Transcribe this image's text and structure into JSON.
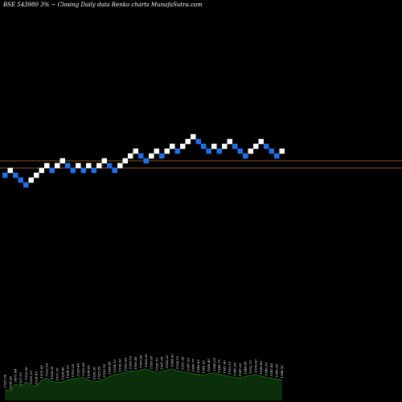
{
  "chart_data": {
    "type": "renko",
    "title": "BSE 543980  3% ~  Closing Daily data  Renko  charts MunafaSutra.com",
    "xlabel": "",
    "ylabel": "",
    "grid": false,
    "legend": "none",
    "colors": {
      "background": "#000000",
      "up_brick": "#ffffff",
      "down_brick": "#1e6fe8",
      "reference_line": "#b8702a",
      "volume_fill": "#0b2e0b",
      "volume_line": "#1f7a1f"
    },
    "brick_directions": [
      "down",
      "up",
      "down",
      "down",
      "down",
      "up",
      "up",
      "up",
      "up",
      "down",
      "up",
      "up",
      "down",
      "down",
      "up",
      "down",
      "up",
      "down",
      "up",
      "up",
      "down",
      "down",
      "up",
      "up",
      "up",
      "up",
      "down",
      "down",
      "up",
      "up",
      "down",
      "up",
      "up",
      "down",
      "up",
      "up",
      "up",
      "down",
      "down",
      "down",
      "up",
      "down",
      "up",
      "up",
      "down",
      "down",
      "down",
      "up",
      "up",
      "up",
      "down",
      "down",
      "down",
      "up"
    ],
    "reference_lines": [
      {
        "name": "upper",
        "brick_level": 3
      },
      {
        "name": "lower",
        "brick_level": 1.5
      }
    ],
    "volume": {
      "labels": [
        "1525.30",
        "1538.90",
        "1471.48",
        "1527.10",
        "1525.90",
        "1525.35",
        "1534.45",
        "1531.65",
        "1532.50",
        "1524.30",
        "1531.05",
        "1528.40",
        "1528.05",
        "1530.20",
        "1529.40",
        "1532.60",
        "1534.65",
        "1536.30",
        "1535.85",
        "1530.10",
        "1556.45",
        "1554.10",
        "1556.00",
        "1563.65",
        "1556.15",
        "1560.40",
        "1559.90",
        "1563.00",
        "1559.95",
        "1556.10",
        "1561.00",
        "1558.30",
        "1544.90",
        "1554.10",
        "1551.30",
        "1547.50",
        "1549.75",
        "1546.65",
        "1545.25",
        "1549.40",
        "1549.05",
        "1546.75",
        "1547.90",
        "1550.15",
        "1547.90",
        "1547.20",
        "1548.80",
        "1552.75",
        "1550.00",
        "1545.60",
        "1549.10",
        "1547.40",
        "1545.30",
        "1548.50"
      ],
      "levels": [
        0.3,
        0.25,
        0.45,
        0.35,
        0.5,
        0.4,
        0.38,
        0.55,
        0.6,
        0.52,
        0.48,
        0.5,
        0.55,
        0.58,
        0.6,
        0.62,
        0.55,
        0.5,
        0.52,
        0.58,
        0.65,
        0.7,
        0.72,
        0.75,
        0.8,
        0.78,
        0.82,
        0.85,
        0.8,
        0.75,
        0.78,
        0.82,
        0.85,
        0.8,
        0.78,
        0.75,
        0.72,
        0.7,
        0.68,
        0.72,
        0.75,
        0.7,
        0.68,
        0.65,
        0.62,
        0.6,
        0.65,
        0.68,
        0.7,
        0.66,
        0.62,
        0.6,
        0.58,
        0.55
      ]
    }
  }
}
